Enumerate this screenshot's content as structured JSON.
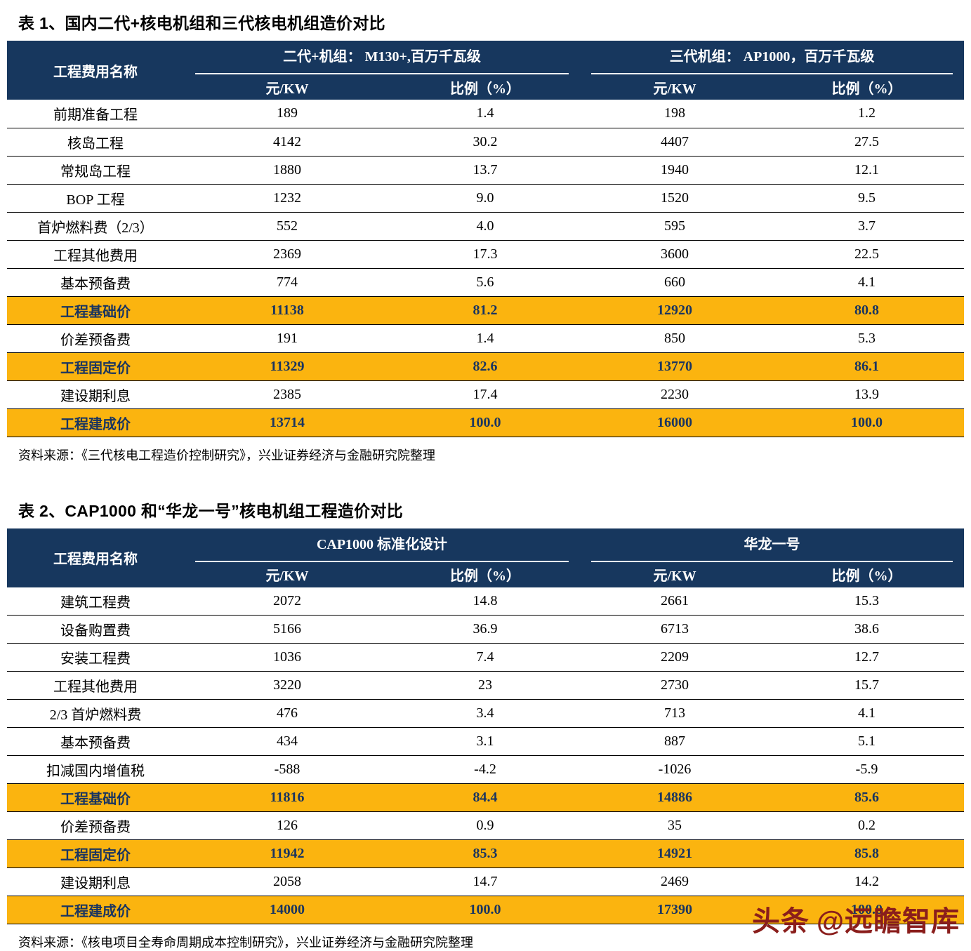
{
  "colors": {
    "header_bg": "#17375e",
    "highlight_bg": "#fbb40f",
    "watermark": "#8a1e1c"
  },
  "table1": {
    "title": "表 1、国内二代+核电机组和三代核电机组造价对比",
    "header": {
      "name_col": "工程费用名称",
      "group1": "二代+机组： M130+,百万千瓦级",
      "group2": "三代机组： AP1000，百万千瓦级",
      "sub": [
        "元/KW",
        "比例（%）",
        "元/KW",
        "比例（%）"
      ]
    },
    "rows": [
      {
        "label": "前期准备工程",
        "values": [
          "189",
          "1.4",
          "198",
          "1.2"
        ],
        "highlight": false
      },
      {
        "label": "核岛工程",
        "values": [
          "4142",
          "30.2",
          "4407",
          "27.5"
        ],
        "highlight": false
      },
      {
        "label": "常规岛工程",
        "values": [
          "1880",
          "13.7",
          "1940",
          "12.1"
        ],
        "highlight": false
      },
      {
        "label": "BOP 工程",
        "values": [
          "1232",
          "9.0",
          "1520",
          "9.5"
        ],
        "highlight": false
      },
      {
        "label": "首炉燃料费（2/3）",
        "values": [
          "552",
          "4.0",
          "595",
          "3.7"
        ],
        "highlight": false
      },
      {
        "label": "工程其他费用",
        "values": [
          "2369",
          "17.3",
          "3600",
          "22.5"
        ],
        "highlight": false
      },
      {
        "label": "基本预备费",
        "values": [
          "774",
          "5.6",
          "660",
          "4.1"
        ],
        "highlight": false
      },
      {
        "label": "工程基础价",
        "values": [
          "11138",
          "81.2",
          "12920",
          "80.8"
        ],
        "highlight": true
      },
      {
        "label": "价差预备费",
        "values": [
          "191",
          "1.4",
          "850",
          "5.3"
        ],
        "highlight": false
      },
      {
        "label": "工程固定价",
        "values": [
          "11329",
          "82.6",
          "13770",
          "86.1"
        ],
        "highlight": true
      },
      {
        "label": "建设期利息",
        "values": [
          "2385",
          "17.4",
          "2230",
          "13.9"
        ],
        "highlight": false
      },
      {
        "label": "工程建成价",
        "values": [
          "13714",
          "100.0",
          "16000",
          "100.0"
        ],
        "highlight": true
      }
    ],
    "source": "资料来源：《三代核电工程造价控制研究》，兴业证券经济与金融研究院整理"
  },
  "table2": {
    "title": "表 2、CAP1000 和“华龙一号”核电机组工程造价对比",
    "header": {
      "name_col": "工程费用名称",
      "group1": "CAP1000 标准化设计",
      "group2": "华龙一号",
      "sub": [
        "元/KW",
        "比例（%）",
        "元/KW",
        "比例（%）"
      ]
    },
    "rows": [
      {
        "label": "建筑工程费",
        "values": [
          "2072",
          "14.8",
          "2661",
          "15.3"
        ],
        "highlight": false
      },
      {
        "label": "设备购置费",
        "values": [
          "5166",
          "36.9",
          "6713",
          "38.6"
        ],
        "highlight": false
      },
      {
        "label": "安装工程费",
        "values": [
          "1036",
          "7.4",
          "2209",
          "12.7"
        ],
        "highlight": false
      },
      {
        "label": "工程其他费用",
        "values": [
          "3220",
          "23",
          "2730",
          "15.7"
        ],
        "highlight": false
      },
      {
        "label": "2/3 首炉燃料费",
        "values": [
          "476",
          "3.4",
          "713",
          "4.1"
        ],
        "highlight": false
      },
      {
        "label": "基本预备费",
        "values": [
          "434",
          "3.1",
          "887",
          "5.1"
        ],
        "highlight": false
      },
      {
        "label": "扣减国内增值税",
        "values": [
          "-588",
          "-4.2",
          "-1026",
          "-5.9"
        ],
        "highlight": false
      },
      {
        "label": "工程基础价",
        "values": [
          "11816",
          "84.4",
          "14886",
          "85.6"
        ],
        "highlight": true
      },
      {
        "label": "价差预备费",
        "values": [
          "126",
          "0.9",
          "35",
          "0.2"
        ],
        "highlight": false
      },
      {
        "label": "工程固定价",
        "values": [
          "11942",
          "85.3",
          "14921",
          "85.8"
        ],
        "highlight": true
      },
      {
        "label": "建设期利息",
        "values": [
          "2058",
          "14.7",
          "2469",
          "14.2"
        ],
        "highlight": false
      },
      {
        "label": "工程建成价",
        "values": [
          "14000",
          "100.0",
          "17390",
          "100.0"
        ],
        "highlight": true
      }
    ],
    "source": "资料来源：《核电项目全寿命周期成本控制研究》，兴业证券经济与金融研究院整理"
  },
  "watermark": {
    "brand": "头条",
    "handle": "@远瞻智库"
  }
}
